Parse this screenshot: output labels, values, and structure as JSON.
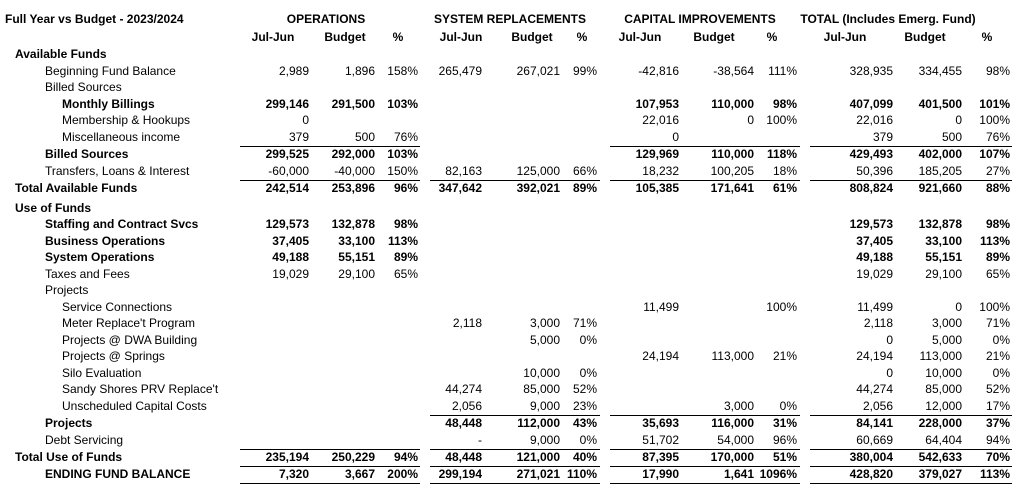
{
  "header": {
    "title": "Full Year vs Budget - 2023/2024",
    "groups": [
      "OPERATIONS",
      "SYSTEM REPLACEMENTS",
      "CAPITAL IMPROVEMENTS",
      "TOTAL (Includes Emerg. Fund)"
    ],
    "columns": [
      "Jul-Jun",
      "Budget",
      "%",
      "Jul-Jun",
      "Budget",
      "%",
      "Jul-Jun",
      "Budget",
      "%",
      "Jul-Jun",
      "Budget",
      "%"
    ]
  },
  "table": {
    "rows": [
      {
        "label": "Available Funds",
        "cells": [
          null,
          null,
          null,
          null,
          null,
          null,
          null,
          null,
          null,
          null,
          null,
          null
        ]
      },
      {
        "label": "Beginning Fund Balance",
        "cells": [
          "2,989",
          "1,896",
          "158%",
          "265,479",
          "267,021",
          "99%",
          "-42,816",
          "-38,564",
          "111%",
          "328,935",
          "334,455",
          "98%"
        ]
      },
      {
        "label": "Billed Sources",
        "cells": [
          null,
          null,
          null,
          null,
          null,
          null,
          null,
          null,
          null,
          null,
          null,
          null
        ]
      },
      {
        "label": "Monthly Billings",
        "cells": [
          "299,146",
          "291,500",
          "103%",
          null,
          null,
          null,
          "107,953",
          "110,000",
          "98%",
          "407,099",
          "401,500",
          "101%"
        ]
      },
      {
        "label": "Membership & Hookups",
        "cells": [
          "0",
          null,
          null,
          null,
          null,
          null,
          "22,016",
          "0",
          "100%",
          "22,016",
          "0",
          "100%"
        ]
      },
      {
        "label": "Miscellaneous income",
        "cells": [
          "379",
          "500",
          "76%",
          null,
          null,
          null,
          "0",
          null,
          null,
          "379",
          "500",
          "76%"
        ]
      },
      {
        "label": "Billed Sources",
        "cells": [
          "299,525",
          "292,000",
          "103%",
          null,
          null,
          null,
          "129,969",
          "110,000",
          "118%",
          "429,493",
          "402,000",
          "107%"
        ]
      },
      {
        "label": "Transfers, Loans & Interest",
        "cells": [
          "-60,000",
          "-40,000",
          "150%",
          "82,163",
          "125,000",
          "66%",
          "18,232",
          "100,205",
          "18%",
          "50,396",
          "185,205",
          "27%"
        ]
      },
      {
        "label": "Total Available Funds",
        "cells": [
          "242,514",
          "253,896",
          "96%",
          "347,642",
          "392,021",
          "89%",
          "105,385",
          "171,641",
          "61%",
          "808,824",
          "921,660",
          "88%"
        ]
      },
      {
        "label": "Use of Funds",
        "cells": [
          null,
          null,
          null,
          null,
          null,
          null,
          null,
          null,
          null,
          null,
          null,
          null
        ]
      },
      {
        "label": "Staffing and Contract Svcs",
        "cells": [
          "129,573",
          "132,878",
          "98%",
          null,
          null,
          null,
          null,
          null,
          null,
          "129,573",
          "132,878",
          "98%"
        ]
      },
      {
        "label": "Business Operations",
        "cells": [
          "37,405",
          "33,100",
          "113%",
          null,
          null,
          null,
          null,
          null,
          null,
          "37,405",
          "33,100",
          "113%"
        ]
      },
      {
        "label": "System Operations",
        "cells": [
          "49,188",
          "55,151",
          "89%",
          null,
          null,
          null,
          null,
          null,
          null,
          "49,188",
          "55,151",
          "89%"
        ]
      },
      {
        "label": "Taxes and Fees",
        "cells": [
          "19,029",
          "29,100",
          "65%",
          null,
          null,
          null,
          null,
          null,
          null,
          "19,029",
          "29,100",
          "65%"
        ]
      },
      {
        "label": "Projects",
        "cells": [
          null,
          null,
          null,
          null,
          null,
          null,
          null,
          null,
          null,
          null,
          null,
          null
        ]
      },
      {
        "label": "Service Connections",
        "cells": [
          null,
          null,
          null,
          null,
          null,
          null,
          "11,499",
          null,
          "100%",
          "11,499",
          "0",
          "100%"
        ]
      },
      {
        "label": "Meter Replace't Program",
        "cells": [
          null,
          null,
          null,
          "2,118",
          "3,000",
          "71%",
          null,
          null,
          null,
          "2,118",
          "3,000",
          "71%"
        ]
      },
      {
        "label": "Projects @ DWA Building",
        "cells": [
          null,
          null,
          null,
          null,
          "5,000",
          "0%",
          null,
          null,
          null,
          "0",
          "5,000",
          "0%"
        ]
      },
      {
        "label": "Projects @ Springs",
        "cells": [
          null,
          null,
          null,
          null,
          null,
          null,
          "24,194",
          "113,000",
          "21%",
          "24,194",
          "113,000",
          "21%"
        ]
      },
      {
        "label": "Silo Evaluation",
        "cells": [
          null,
          null,
          null,
          null,
          "10,000",
          "0%",
          null,
          null,
          null,
          "0",
          "10,000",
          "0%"
        ]
      },
      {
        "label": "Sandy Shores PRV Replace't",
        "cells": [
          null,
          null,
          null,
          "44,274",
          "85,000",
          "52%",
          null,
          null,
          null,
          "44,274",
          "85,000",
          "52%"
        ]
      },
      {
        "label": "Unscheduled Capital Costs",
        "cells": [
          null,
          null,
          null,
          "2,056",
          "9,000",
          "23%",
          null,
          "3,000",
          "0%",
          "2,056",
          "12,000",
          "17%"
        ]
      },
      {
        "label": "Projects",
        "cells": [
          null,
          null,
          null,
          "48,448",
          "112,000",
          "43%",
          "35,693",
          "116,000",
          "31%",
          "84,141",
          "228,000",
          "37%"
        ]
      },
      {
        "label": "Debt Servicing",
        "cells": [
          null,
          null,
          null,
          "-",
          "9,000",
          "0%",
          "51,702",
          "54,000",
          "96%",
          "60,669",
          "64,404",
          "94%"
        ]
      },
      {
        "label": "Total Use of Funds",
        "cells": [
          "235,194",
          "250,229",
          "94%",
          "48,448",
          "121,000",
          "40%",
          "87,395",
          "170,000",
          "51%",
          "380,004",
          "542,633",
          "70%"
        ]
      },
      {
        "label": "ENDING FUND BALANCE",
        "cells": [
          "7,320",
          "3,667",
          "200%",
          "299,194",
          "271,021",
          "110%",
          "17,990",
          "1,641",
          "1096%",
          "428,820",
          "379,027",
          "113%"
        ]
      }
    ]
  }
}
